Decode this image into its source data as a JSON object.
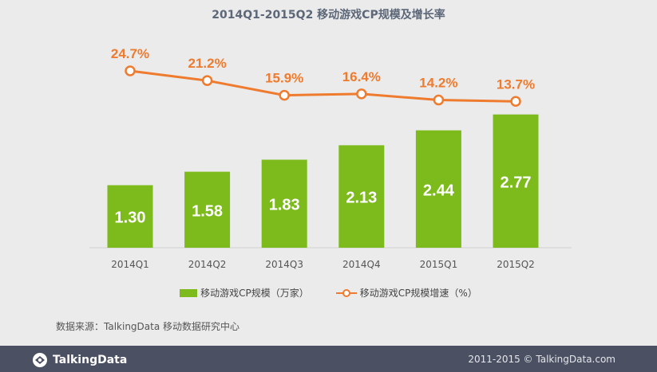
{
  "chart_data": {
    "type": "bar",
    "title": "2014Q1-2015Q2 移动游戏CP规模及增长率",
    "categories": [
      "2014Q1",
      "2014Q2",
      "2014Q3",
      "2014Q4",
      "2015Q1",
      "2015Q2"
    ],
    "series": [
      {
        "name": "移动游戏CP规模（万家）",
        "type": "bar",
        "values": [
          1.3,
          1.58,
          1.83,
          2.13,
          2.44,
          2.77
        ],
        "labels": [
          "1.30",
          "1.58",
          "1.83",
          "2.13",
          "2.44",
          "2.77"
        ],
        "color": "#7dbb1d"
      },
      {
        "name": "移动游戏CP规模增速（%）",
        "type": "line",
        "values": [
          24.7,
          21.2,
          15.9,
          16.4,
          14.2,
          13.7
        ],
        "labels": [
          "24.7%",
          "21.2%",
          "15.9%",
          "16.4%",
          "14.2%",
          "13.7%"
        ],
        "color": "#ee7b2e"
      }
    ],
    "grid": false,
    "legend": "bottom"
  },
  "source": "数据来源：TalkingData 移动数据研究中心",
  "footer": {
    "brand": "TalkingData",
    "copyright": "2011-2015 © TalkingData.com"
  }
}
